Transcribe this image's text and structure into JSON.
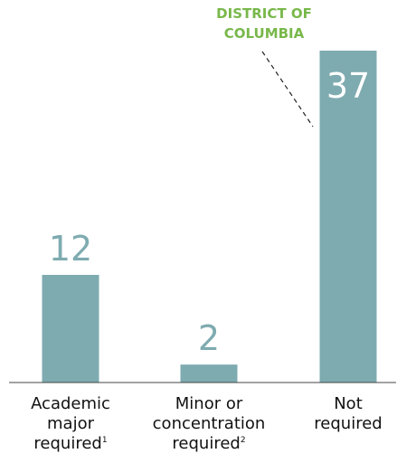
{
  "chart_data": {
    "type": "bar",
    "title": "",
    "xlabel": "",
    "ylabel": "",
    "ylim": [
      0,
      37
    ],
    "grid": false,
    "categories": [
      {
        "lines": [
          "Academic",
          "major",
          "required"
        ],
        "footnote": "1"
      },
      {
        "lines": [
          "Minor or",
          "concentration",
          "required"
        ],
        "footnote": "2"
      },
      {
        "lines": [
          "Not",
          "required"
        ],
        "footnote": ""
      }
    ],
    "values": [
      12,
      2,
      37
    ],
    "colors": {
      "bar": "#7eabb0",
      "note": "#78b84a"
    },
    "annotation": {
      "lines": [
        "DISTRICT OF",
        "COLUMBIA"
      ],
      "category_index": 2
    }
  }
}
